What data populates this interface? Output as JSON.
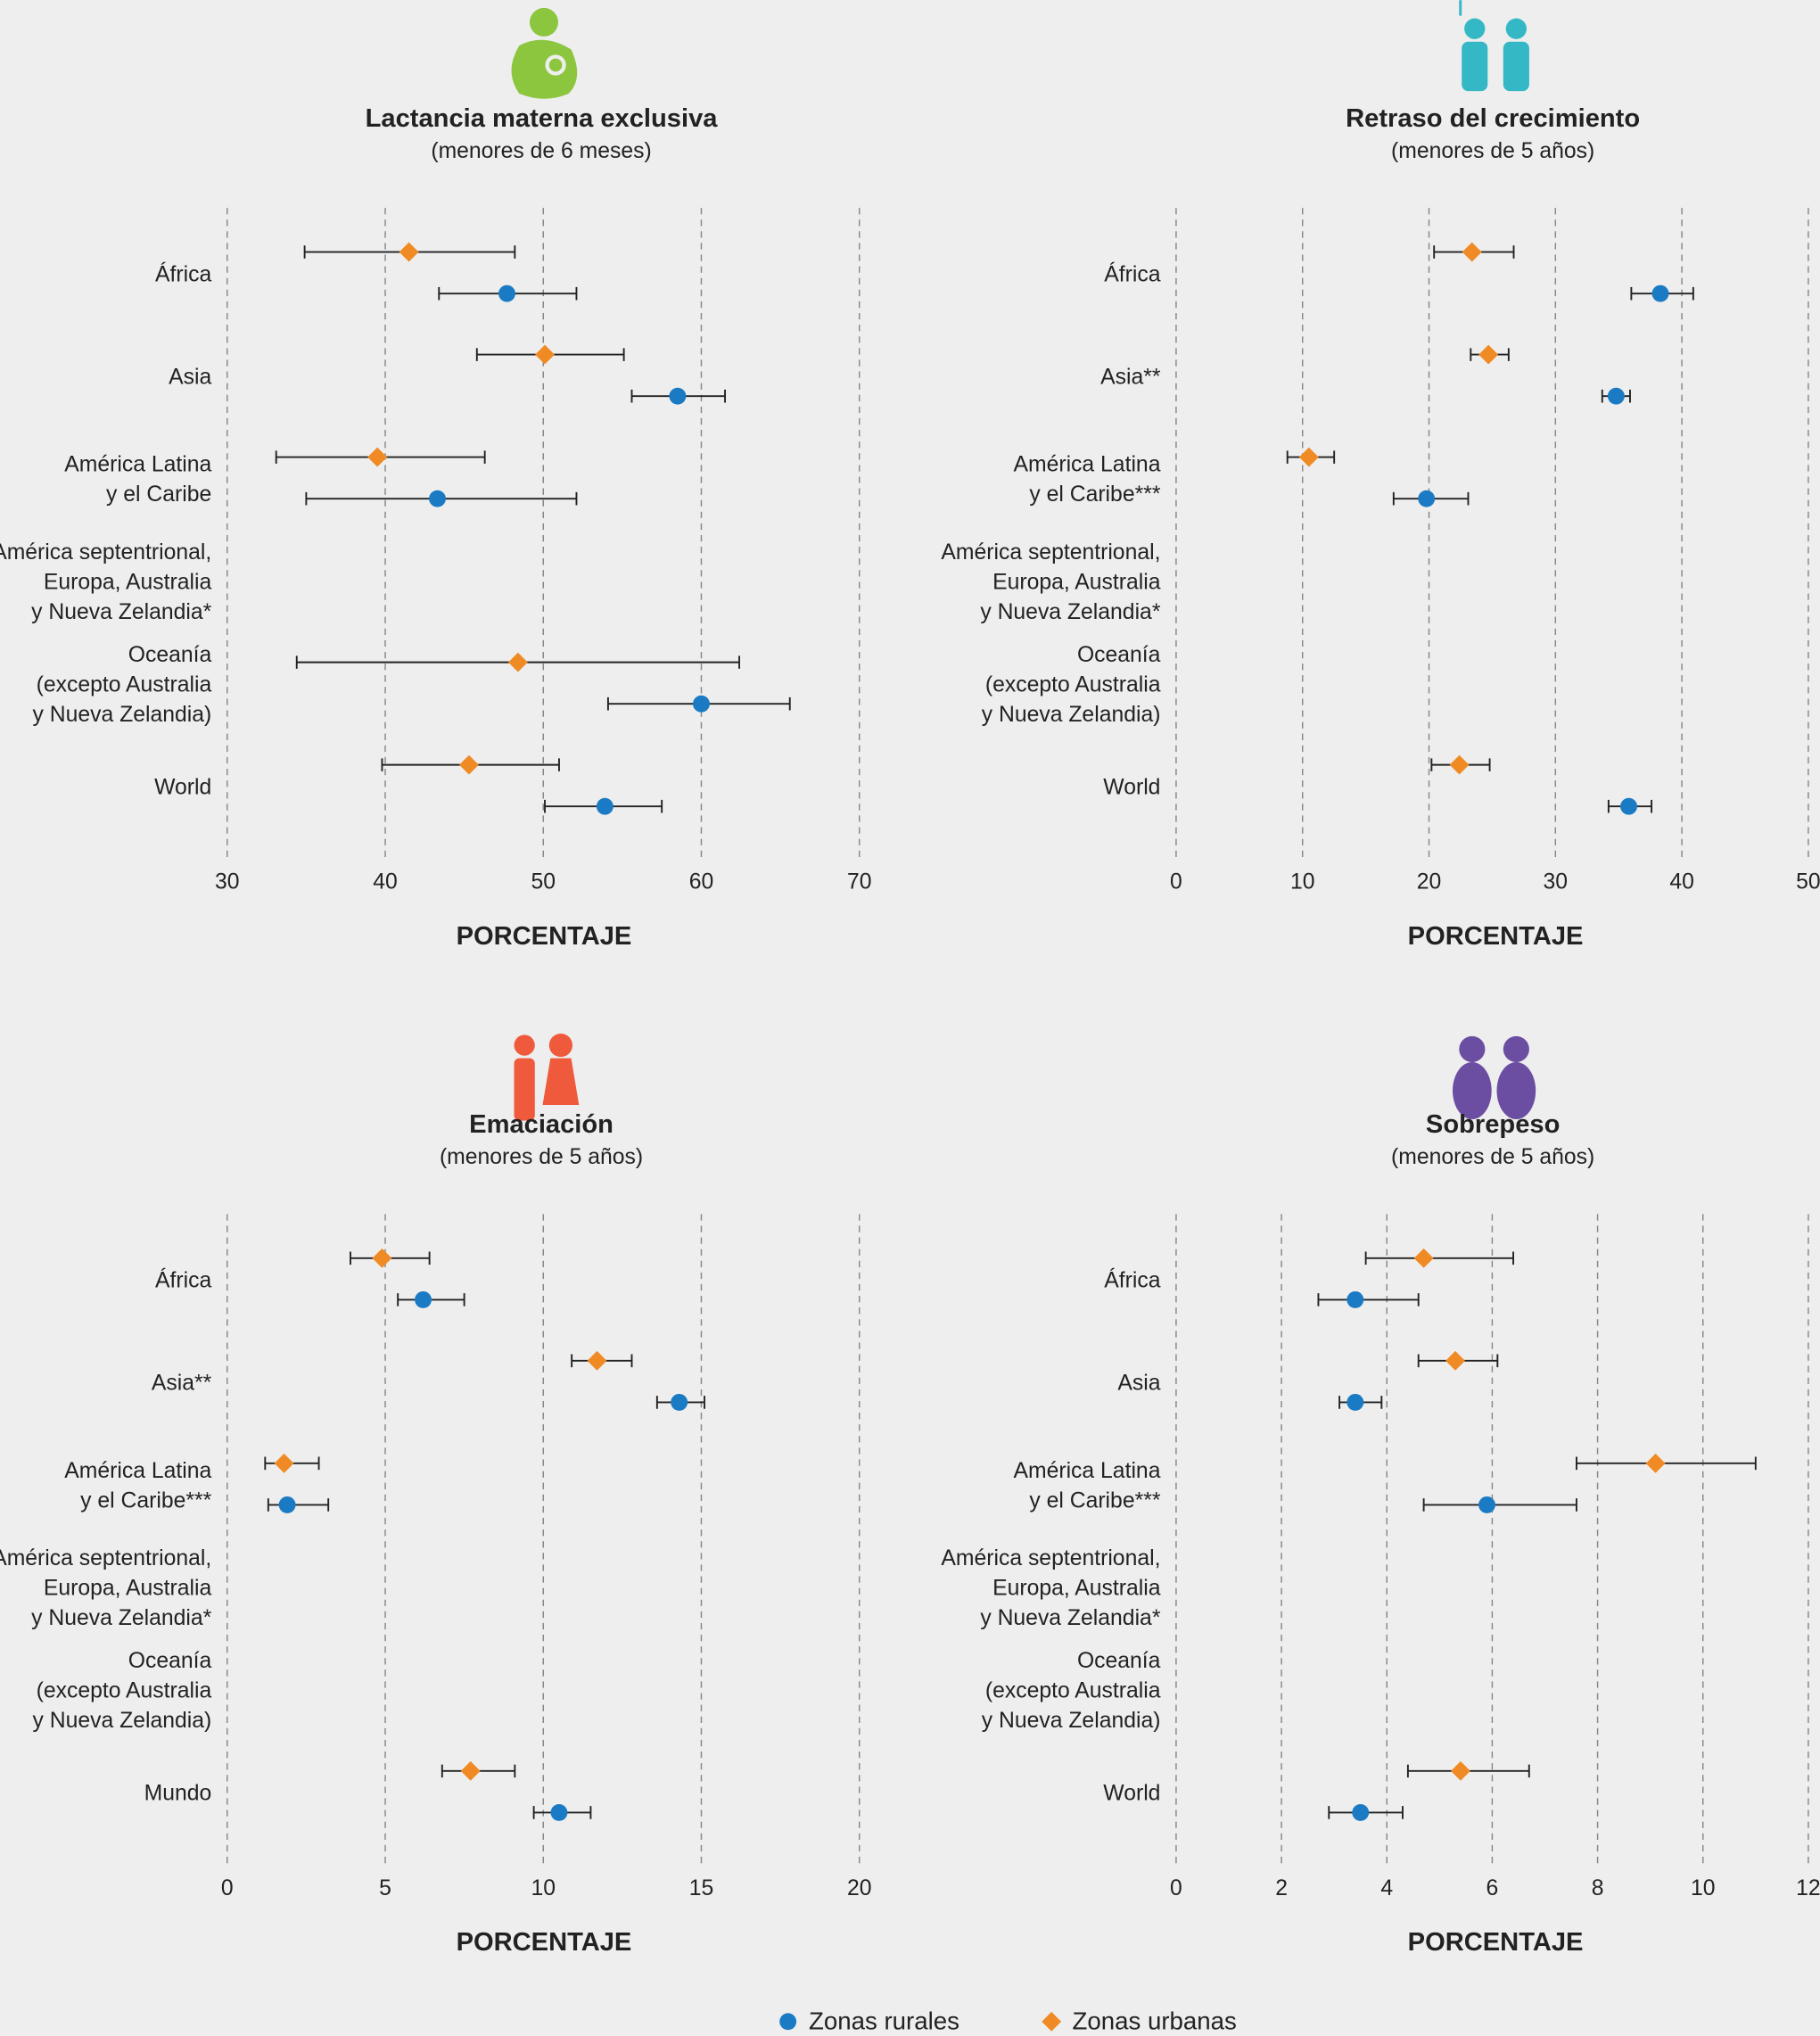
{
  "legend": [
    {
      "name": "Zonas rurales",
      "color": "#1a7bc4",
      "marker": "circle"
    },
    {
      "name": "Zonas urbanas",
      "color": "#f08a24",
      "marker": "diamond"
    }
  ],
  "chart_data": [
    {
      "type": "dot",
      "title": "Lactancia materna exclusiva",
      "subtitle": "(menores de 6 meses)",
      "xlabel": "PORCENTAJE",
      "xlim": [
        30,
        70
      ],
      "xticks": [
        30,
        40,
        50,
        60,
        70
      ],
      "grid": true,
      "categories": [
        [
          "África"
        ],
        [
          "Asia"
        ],
        [
          "América Latina",
          "y el Caribe"
        ],
        [
          "América septentrional,",
          "Europa, Australia",
          "y Nueva Zelandia*"
        ],
        [
          "Oceanía",
          "(excepto Australia",
          "y Nueva Zelandia)"
        ],
        [
          "World"
        ]
      ],
      "series": [
        {
          "values": [
            47.7,
            58.5,
            43.3,
            null,
            60.0,
            53.9
          ],
          "low": [
            43.4,
            55.6,
            35.0,
            null,
            54.1,
            50.1
          ],
          "high": [
            52.1,
            61.5,
            52.1,
            null,
            65.6,
            57.5
          ]
        },
        {
          "values": [
            41.5,
            50.1,
            39.5,
            null,
            48.4,
            45.3
          ],
          "low": [
            34.9,
            45.8,
            33.1,
            null,
            34.4,
            39.8
          ],
          "high": [
            48.2,
            55.1,
            46.3,
            null,
            62.4,
            51.0
          ]
        }
      ]
    },
    {
      "type": "dot",
      "title": "Retraso del crecimiento",
      "subtitle": "(menores de 5 años)",
      "xlabel": "PORCENTAJE",
      "xlim": [
        0,
        50
      ],
      "xticks": [
        0,
        10,
        20,
        30,
        40,
        50
      ],
      "grid": true,
      "categories": [
        [
          "África"
        ],
        [
          "Asia**"
        ],
        [
          "América Latina",
          "y el Caribe***"
        ],
        [
          "América septentrional,",
          "Europa, Australia",
          "y Nueva Zelandia*"
        ],
        [
          "Oceanía",
          "(excepto Australia",
          "y Nueva Zelandia)"
        ],
        [
          "World"
        ]
      ],
      "series": [
        {
          "values": [
            38.3,
            34.8,
            19.8,
            null,
            null,
            35.8
          ],
          "low": [
            36.0,
            33.7,
            17.2,
            null,
            null,
            34.2
          ],
          "high": [
            40.9,
            35.9,
            23.1,
            null,
            null,
            37.6
          ]
        },
        {
          "values": [
            23.4,
            24.7,
            10.5,
            null,
            null,
            22.4
          ],
          "low": [
            20.4,
            23.3,
            8.8,
            null,
            null,
            20.2
          ],
          "high": [
            26.7,
            26.3,
            12.5,
            null,
            null,
            24.8
          ]
        }
      ]
    },
    {
      "type": "dot",
      "title": "Emaciación",
      "subtitle": "(menores de 5 años)",
      "xlabel": "PORCENTAJE",
      "xlim": [
        0,
        20
      ],
      "xticks": [
        0,
        5,
        10,
        15,
        20
      ],
      "grid": true,
      "categories": [
        [
          "África"
        ],
        [
          "Asia**"
        ],
        [
          "América Latina",
          "y el Caribe***"
        ],
        [
          "América septentrional,",
          "Europa, Australia",
          "y Nueva Zelandia*"
        ],
        [
          "Oceanía",
          "(excepto Australia",
          "y Nueva Zelandia)"
        ],
        [
          "Mundo"
        ]
      ],
      "series": [
        {
          "values": [
            6.2,
            14.3,
            1.9,
            null,
            null,
            10.5
          ],
          "low": [
            5.4,
            13.6,
            1.3,
            null,
            null,
            9.7
          ],
          "high": [
            7.5,
            15.1,
            3.2,
            null,
            null,
            11.5
          ]
        },
        {
          "values": [
            4.9,
            11.7,
            1.8,
            null,
            null,
            7.7
          ],
          "low": [
            3.9,
            10.9,
            1.2,
            null,
            null,
            6.8
          ],
          "high": [
            6.4,
            12.8,
            2.9,
            null,
            null,
            9.1
          ]
        }
      ]
    },
    {
      "type": "dot",
      "title": "Sobrepeso",
      "subtitle": "(menores de 5 años)",
      "xlabel": "PORCENTAJE",
      "xlim": [
        0,
        12
      ],
      "xticks": [
        0,
        2,
        4,
        6,
        8,
        10,
        12
      ],
      "grid": true,
      "categories": [
        [
          "África"
        ],
        [
          "Asia"
        ],
        [
          "América Latina",
          "y el Caribe***"
        ],
        [
          "América septentrional,",
          "Europa, Australia",
          "y Nueva Zelandia*"
        ],
        [
          "Oceanía",
          "(excepto Australia",
          "y Nueva Zelandia)"
        ],
        [
          "World"
        ]
      ],
      "series": [
        {
          "values": [
            3.4,
            3.4,
            5.9,
            null,
            null,
            3.5
          ],
          "low": [
            2.7,
            3.1,
            4.7,
            null,
            null,
            2.9
          ],
          "high": [
            4.6,
            3.9,
            7.6,
            null,
            null,
            4.3
          ]
        },
        {
          "values": [
            4.7,
            5.3,
            9.1,
            null,
            null,
            5.4
          ],
          "low": [
            3.6,
            4.6,
            7.6,
            null,
            null,
            4.4
          ],
          "high": [
            6.4,
            6.1,
            11.0,
            null,
            null,
            6.7
          ]
        }
      ]
    }
  ]
}
